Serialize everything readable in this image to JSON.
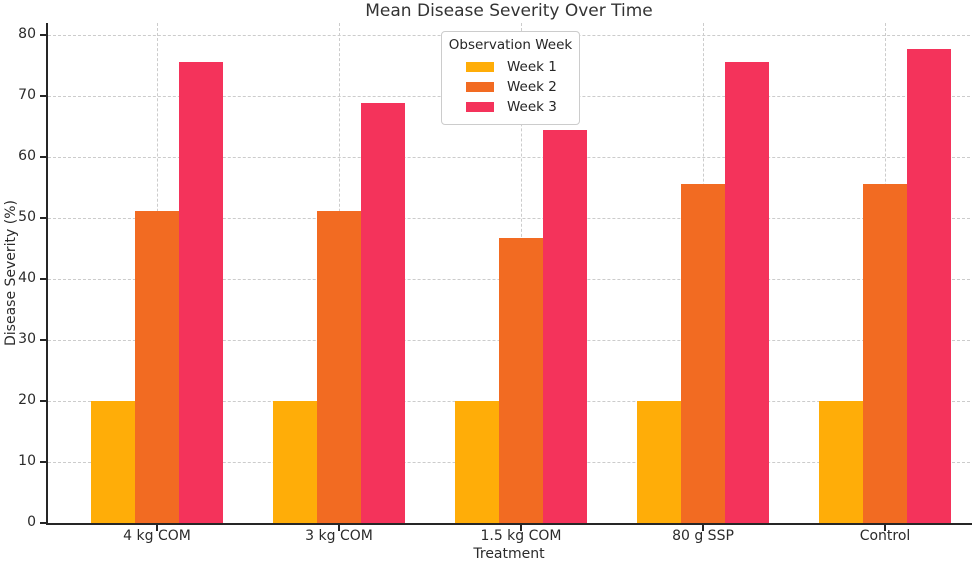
{
  "chart_data": {
    "type": "bar",
    "title": "Mean Disease Severity Over Time",
    "xlabel": "Treatment",
    "ylabel": "Disease Severity (%)",
    "legend_title": "Observation Week",
    "legend_position": "upper center",
    "categories": [
      "4 kg COM",
      "3 kg COM",
      "1.5 kg COM",
      "80 g SSP",
      "Control"
    ],
    "series": [
      {
        "name": "Week 1",
        "color": "#FFAD08",
        "values": [
          20,
          20,
          20,
          20,
          20
        ]
      },
      {
        "name": "Week 2",
        "color": "#F26B22",
        "values": [
          51.1,
          51.1,
          46.7,
          55.6,
          55.6
        ]
      },
      {
        "name": "Week 3",
        "color": "#F4335B",
        "values": [
          75.6,
          68.9,
          64.4,
          75.6,
          77.8
        ]
      }
    ],
    "ylim": [
      0,
      82
    ],
    "yticks": [
      0,
      10,
      20,
      30,
      40,
      50,
      60,
      70,
      80
    ],
    "grid": "dashed both axes",
    "colors": {
      "text": "#2b2b2b",
      "title": "#333333",
      "spine": "#262626",
      "grid": "#cccccc",
      "background": "#ffffff"
    }
  }
}
